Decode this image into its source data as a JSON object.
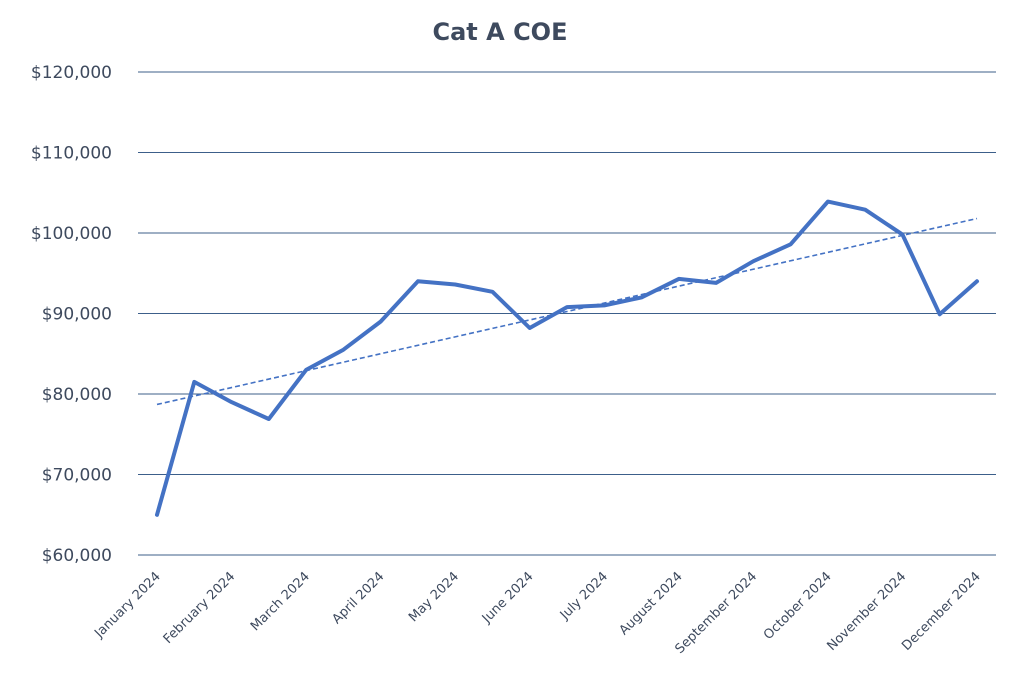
{
  "chart_data": {
    "type": "line",
    "title": "Cat A COE",
    "xlabel": "",
    "ylabel": "",
    "ylim": [
      60000,
      120000
    ],
    "yticks": [
      60000,
      70000,
      80000,
      90000,
      100000,
      110000,
      120000
    ],
    "ytick_labels": [
      "$60,000",
      "$70,000",
      "$80,000",
      "$90,000",
      "$100,000",
      "$110,000",
      "$120,000"
    ],
    "categories": [
      "January 2024",
      "February 2024",
      "March 2024",
      "April 2024",
      "May 2024",
      "June 2024",
      "July 2024",
      "August 2024",
      "September 2024",
      "October 2024",
      "November 2024",
      "December 2024"
    ],
    "x": [
      1,
      1.5,
      2,
      2.5,
      3,
      3.5,
      4,
      4.5,
      5,
      5.5,
      6,
      6.5,
      7,
      7.5,
      8,
      8.5,
      9,
      9.5,
      10,
      10.5,
      11,
      11.5,
      12
    ],
    "values": [
      65000,
      81500,
      79000,
      76900,
      83000,
      85500,
      89000,
      94000,
      93600,
      92700,
      88200,
      90800,
      91000,
      92000,
      94300,
      93800,
      96500,
      98600,
      103900,
      102900,
      99800,
      89900,
      94000
    ],
    "series": [
      {
        "name": "Cat A COE",
        "style": "solid",
        "color": "#4472c4"
      },
      {
        "name": "Linear trend",
        "style": "dashed",
        "color": "#4472c4",
        "trend_start": 78700,
        "trend_end": 101800
      }
    ],
    "grid": true,
    "legend": "none"
  }
}
